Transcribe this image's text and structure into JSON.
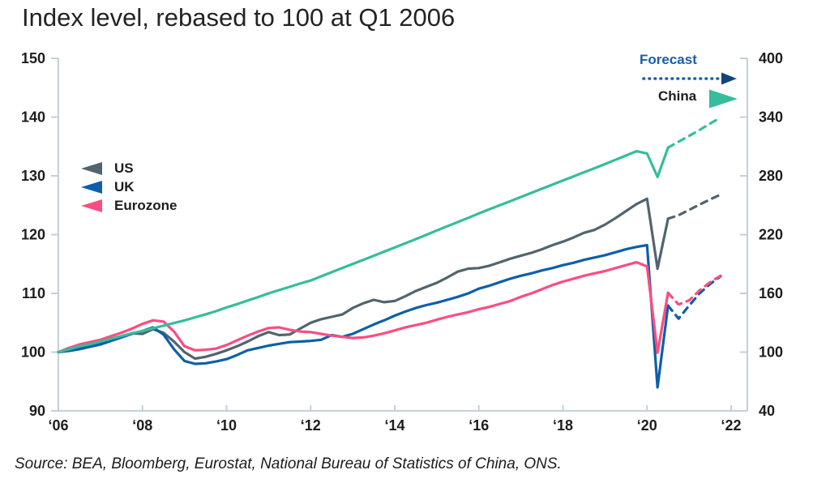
{
  "title": "Index level, rebased to 100 at Q1 2006",
  "source": "Source: BEA, Bloomberg, Eurostat, National Bureau of Statistics of China, ONS.",
  "annotations": {
    "forecast_label": "Forecast",
    "china_label": "China",
    "forecast_color": "#1b5ea6",
    "china_arrow_color": "#35bd9d"
  },
  "legend": [
    {
      "label": "US",
      "color": "#52646e"
    },
    {
      "label": "UK",
      "color": "#0e5fa9"
    },
    {
      "label": "Eurozone",
      "color": "#fb4d80"
    }
  ],
  "colors": {
    "axis": "#c2d1d9",
    "text": "#1d1d1d"
  },
  "axes": {
    "left": {
      "ticks": [
        90,
        100,
        110,
        120,
        130,
        140,
        150
      ],
      "range": [
        90,
        150
      ]
    },
    "right": {
      "ticks": [
        40,
        100,
        160,
        220,
        280,
        340,
        400
      ],
      "range": [
        40,
        400
      ]
    },
    "x": {
      "ticks": [
        {
          "year": 2006,
          "label": "‘06"
        },
        {
          "year": 2008,
          "label": "‘08"
        },
        {
          "year": 2010,
          "label": "‘10"
        },
        {
          "year": 2012,
          "label": "‘12"
        },
        {
          "year": 2014,
          "label": "‘14"
        },
        {
          "year": 2016,
          "label": "‘16"
        },
        {
          "year": 2018,
          "label": "‘18"
        },
        {
          "year": 2020,
          "label": "‘20"
        },
        {
          "year": 2022,
          "label": "‘22"
        }
      ],
      "range": [
        2006,
        2022.4
      ]
    }
  },
  "chart_data": {
    "type": "line",
    "title": "Index level, rebased to 100 at Q1 2006",
    "x_start": 2006,
    "x_step": 0.25,
    "forecast_start_year": 2020.5,
    "forecast_style": "dashed",
    "grid": false,
    "series": [
      {
        "name": "US",
        "axis": "left",
        "color": "#52646e",
        "values": [
          100.0,
          100.3,
          100.7,
          101.0,
          101.4,
          102.0,
          102.6,
          103.2,
          103.1,
          103.9,
          103.3,
          101.8,
          100.0,
          98.9,
          99.2,
          99.7,
          100.3,
          101.0,
          101.8,
          102.7,
          103.4,
          102.9,
          103.0,
          104.0,
          105.0,
          105.6,
          106.0,
          106.4,
          107.5,
          108.3,
          108.9,
          108.5,
          108.7,
          109.5,
          110.4,
          111.1,
          111.8,
          112.7,
          113.7,
          114.2,
          114.3,
          114.7,
          115.3,
          115.9,
          116.4,
          116.9,
          117.5,
          118.2,
          118.8,
          119.5,
          120.3,
          120.8,
          121.7,
          122.8,
          124.0,
          125.2,
          126.1,
          114.2,
          122.7,
          123.3,
          124.2,
          125.1,
          126.0,
          126.8
        ]
      },
      {
        "name": "UK",
        "axis": "left",
        "color": "#0e5fa9",
        "values": [
          100.0,
          100.2,
          100.5,
          100.9,
          101.3,
          101.9,
          102.5,
          103.1,
          103.6,
          104.2,
          103.0,
          100.5,
          98.5,
          98.0,
          98.1,
          98.4,
          98.8,
          99.5,
          100.3,
          100.7,
          101.1,
          101.4,
          101.7,
          101.8,
          101.9,
          102.1,
          102.9,
          102.6,
          103.1,
          103.9,
          104.7,
          105.4,
          106.2,
          106.9,
          107.5,
          108.0,
          108.4,
          108.9,
          109.4,
          110.0,
          110.8,
          111.3,
          111.9,
          112.5,
          113.0,
          113.4,
          113.9,
          114.3,
          114.8,
          115.2,
          115.7,
          116.1,
          116.5,
          117.0,
          117.5,
          117.9,
          118.2,
          94.0,
          107.9,
          105.7,
          107.9,
          110.0,
          111.6,
          112.9
        ]
      },
      {
        "name": "Eurozone",
        "axis": "left",
        "color": "#fb4d80",
        "values": [
          100.0,
          100.7,
          101.3,
          101.7,
          102.1,
          102.7,
          103.3,
          104.0,
          104.8,
          105.4,
          105.2,
          103.5,
          101.0,
          100.3,
          100.4,
          100.6,
          101.2,
          102.0,
          102.8,
          103.5,
          104.1,
          104.2,
          103.8,
          103.5,
          103.4,
          103.1,
          102.8,
          102.6,
          102.4,
          102.5,
          102.8,
          103.2,
          103.7,
          104.2,
          104.6,
          105.0,
          105.5,
          106.0,
          106.4,
          106.8,
          107.3,
          107.7,
          108.2,
          108.7,
          109.4,
          110.0,
          110.7,
          111.4,
          112.0,
          112.5,
          113.0,
          113.4,
          113.8,
          114.3,
          114.8,
          115.3,
          114.6,
          99.9,
          110.1,
          108.1,
          108.8,
          110.5,
          111.9,
          113.0
        ]
      },
      {
        "name": "China",
        "axis": "right",
        "color": "#35bd9d",
        "values": [
          100.0,
          103.0,
          106.0,
          108.0,
          110.8,
          113.6,
          116.4,
          119.2,
          121.6,
          124.3,
          127.0,
          129.7,
          132.4,
          135.5,
          138.6,
          141.8,
          145.6,
          149.0,
          152.6,
          156.2,
          160.0,
          163.3,
          166.6,
          170.0,
          173.2,
          177.4,
          181.6,
          185.8,
          190.0,
          194.2,
          198.4,
          202.6,
          206.8,
          211.1,
          215.4,
          219.7,
          224.2,
          228.5,
          232.8,
          237.1,
          241.6,
          245.8,
          250.0,
          254.2,
          258.4,
          262.6,
          266.8,
          271.0,
          275.2,
          279.4,
          283.6,
          287.8,
          292.0,
          296.4,
          300.8,
          305.2,
          302.8,
          278.8,
          308.8,
          314.8,
          320.8,
          326.8,
          333.4,
          339.6
        ]
      }
    ]
  }
}
